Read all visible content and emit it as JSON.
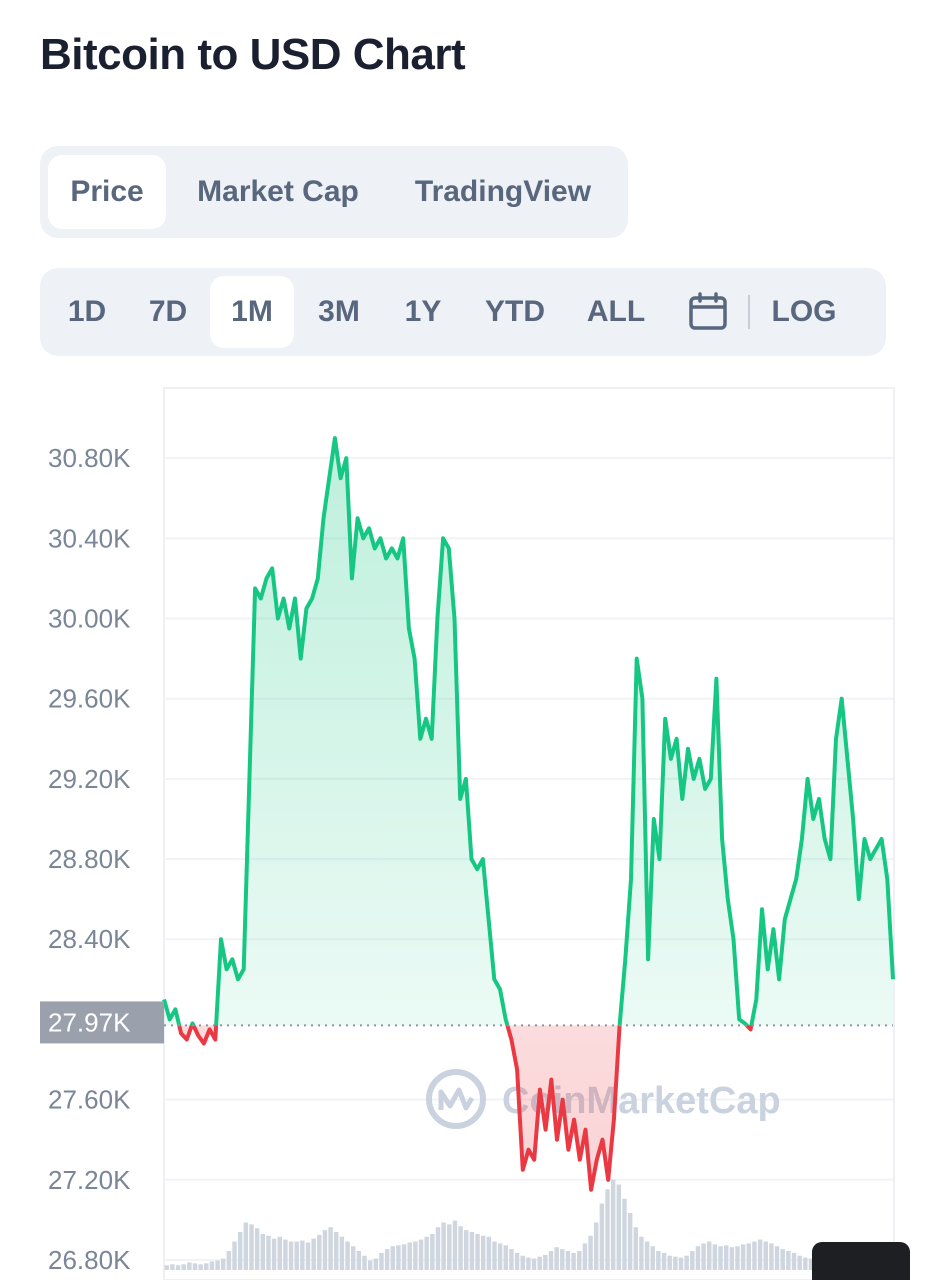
{
  "page": {
    "title": "Bitcoin to USD Chart"
  },
  "view_tabs": [
    {
      "label": "Price",
      "active": true
    },
    {
      "label": "Market Cap",
      "active": false
    },
    {
      "label": "TradingView",
      "active": false
    }
  ],
  "range_tabs": [
    {
      "label": "1D",
      "active": false
    },
    {
      "label": "7D",
      "active": false
    },
    {
      "label": "1M",
      "active": true
    },
    {
      "label": "3M",
      "active": false
    },
    {
      "label": "1Y",
      "active": false
    },
    {
      "label": "YTD",
      "active": false
    },
    {
      "label": "ALL",
      "active": false
    }
  ],
  "calendar_icon": "calendar-icon",
  "log_label": "LOG",
  "watermark": "CoinMarketCap",
  "colors": {
    "up": "#16c784",
    "down": "#ea3943",
    "badge": "#9aa1ac",
    "volume": "#cfd6e0"
  },
  "chart_data": {
    "type": "line",
    "baseline": 27970,
    "baseline_label": "27.97K",
    "ylim": [
      26700,
      31150
    ],
    "yticks": [
      {
        "value": 30800,
        "label": "30.80K"
      },
      {
        "value": 30400,
        "label": "30.40K"
      },
      {
        "value": 30000,
        "label": "30.00K"
      },
      {
        "value": 29600,
        "label": "29.60K"
      },
      {
        "value": 29200,
        "label": "29.20K"
      },
      {
        "value": 28800,
        "label": "28.80K"
      },
      {
        "value": 28400,
        "label": "28.40K"
      },
      {
        "value": 27600,
        "label": "27.60K"
      },
      {
        "value": 27200,
        "label": "27.20K"
      },
      {
        "value": 26800,
        "label": "26.80K"
      }
    ],
    "series": [
      {
        "values": [
          28100,
          28000,
          28050,
          27930,
          27900,
          27980,
          27920,
          27880,
          27950,
          27900,
          28400,
          28250,
          28300,
          28200,
          28250,
          29200,
          30150,
          30100,
          30200,
          30250,
          30000,
          30100,
          29950,
          30100,
          29800,
          30050,
          30100,
          30200,
          30500,
          30700,
          30900,
          30700,
          30800,
          30200,
          30500,
          30400,
          30450,
          30350,
          30400,
          30300,
          30350,
          30300,
          30400,
          29950,
          29800,
          29400,
          29500,
          29400,
          30000,
          30400,
          30350,
          30000,
          29100,
          29200,
          28800,
          28750,
          28800,
          28500,
          28200,
          28150,
          28000,
          27900,
          27750,
          27250,
          27350,
          27300,
          27650,
          27450,
          27700,
          27400,
          27600,
          27350,
          27500,
          27300,
          27450,
          27150,
          27300,
          27400,
          27200,
          27500,
          27970,
          28300,
          28700,
          29800,
          29600,
          28300,
          29000,
          28800,
          29500,
          29300,
          29400,
          29100,
          29350,
          29200,
          29300,
          29150,
          29200,
          29700,
          28900,
          28600,
          28400,
          28000,
          27980,
          27950,
          28100,
          28550,
          28250,
          28450,
          28200,
          28500,
          28600,
          28700,
          28900,
          29200,
          29000,
          29100,
          28900,
          28800,
          29400,
          29600,
          29300,
          29000,
          28600,
          28900,
          28800,
          28850,
          28900,
          28700,
          28200
        ]
      }
    ],
    "volume": [
      0.05,
      0.06,
      0.05,
      0.06,
      0.08,
      0.07,
      0.06,
      0.07,
      0.09,
      0.1,
      0.12,
      0.2,
      0.3,
      0.4,
      0.5,
      0.48,
      0.44,
      0.38,
      0.36,
      0.33,
      0.35,
      0.32,
      0.3,
      0.3,
      0.31,
      0.29,
      0.33,
      0.37,
      0.42,
      0.45,
      0.4,
      0.35,
      0.3,
      0.25,
      0.2,
      0.15,
      0.1,
      0.12,
      0.18,
      0.22,
      0.25,
      0.26,
      0.27,
      0.29,
      0.3,
      0.32,
      0.35,
      0.38,
      0.45,
      0.5,
      0.48,
      0.52,
      0.46,
      0.42,
      0.4,
      0.38,
      0.36,
      0.35,
      0.3,
      0.28,
      0.26,
      0.22,
      0.18,
      0.15,
      0.13,
      0.12,
      0.14,
      0.16,
      0.2,
      0.24,
      0.22,
      0.2,
      0.18,
      0.2,
      0.28,
      0.36,
      0.5,
      0.7,
      0.85,
      0.95,
      0.9,
      0.75,
      0.6,
      0.45,
      0.35,
      0.3,
      0.25,
      0.2,
      0.18,
      0.15,
      0.14,
      0.13,
      0.15,
      0.2,
      0.25,
      0.28,
      0.3,
      0.27,
      0.25,
      0.26,
      0.24,
      0.25,
      0.27,
      0.28,
      0.3,
      0.32,
      0.3,
      0.28,
      0.25,
      0.22,
      0.2,
      0.18,
      0.15,
      0.13,
      0.12,
      0.11,
      0.1,
      0.1,
      0.1,
      0.1,
      0.1,
      0.1,
      0.1,
      0.1,
      0.1,
      0.1,
      0.1,
      0.1,
      0.1
    ]
  }
}
